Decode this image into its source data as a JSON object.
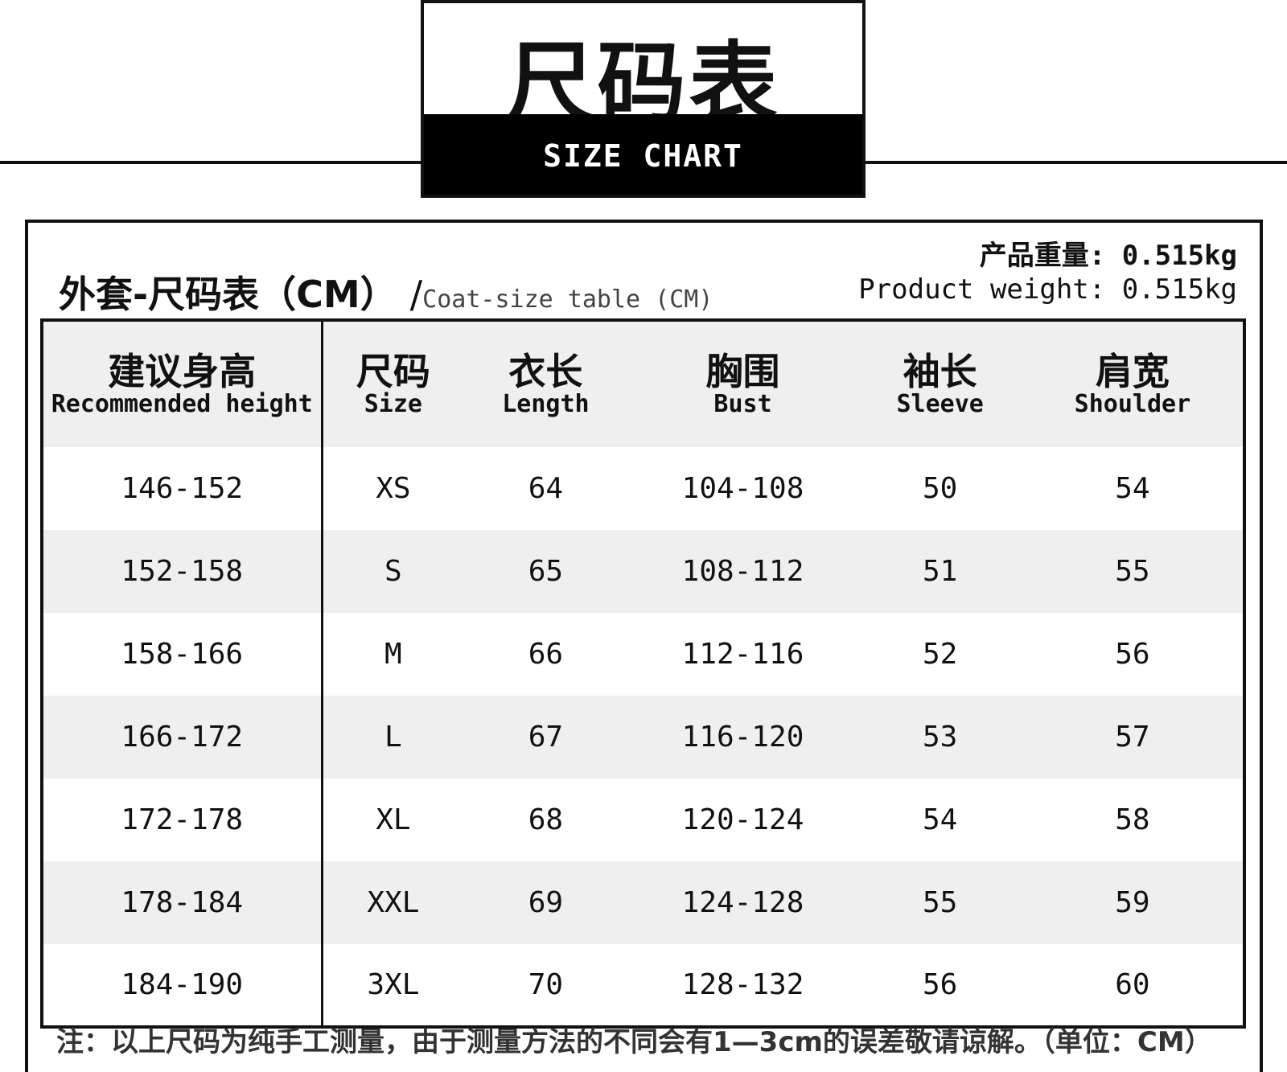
{
  "title": {
    "cn": "尺码表",
    "en": "SIZE CHART"
  },
  "caption": {
    "cn": "外套-尺码表（CM）",
    "sep": "/",
    "en": "Coat-size table (CM)"
  },
  "weight": {
    "cn": "产品重量: 0.515kg",
    "en": "Product weight: 0.515kg"
  },
  "table": {
    "headers": [
      {
        "cn": "建议身高",
        "en": "Recommended height"
      },
      {
        "cn": "尺码",
        "en": "Size"
      },
      {
        "cn": "衣长",
        "en": "Length"
      },
      {
        "cn": "胸围",
        "en": "Bust"
      },
      {
        "cn": "袖长",
        "en": "Sleeve"
      },
      {
        "cn": "肩宽",
        "en": "Shoulder"
      }
    ],
    "rows": [
      [
        "146-152",
        "XS",
        "64",
        "104-108",
        "50",
        "54"
      ],
      [
        "152-158",
        "S",
        "65",
        "108-112",
        "51",
        "55"
      ],
      [
        "158-166",
        "M",
        "66",
        "112-116",
        "52",
        "56"
      ],
      [
        "166-172",
        "L",
        "67",
        "116-120",
        "53",
        "57"
      ],
      [
        "172-178",
        "XL",
        "68",
        "120-124",
        "54",
        "58"
      ],
      [
        "178-184",
        "XXL",
        "69",
        "124-128",
        "55",
        "59"
      ],
      [
        "184-190",
        "3XL",
        "70",
        "128-132",
        "56",
        "60"
      ]
    ]
  },
  "note": "注：以上尺码为纯手工测量，由于测量方法的不同会有1—3cm的误差敬请谅解。（单位：CM）"
}
